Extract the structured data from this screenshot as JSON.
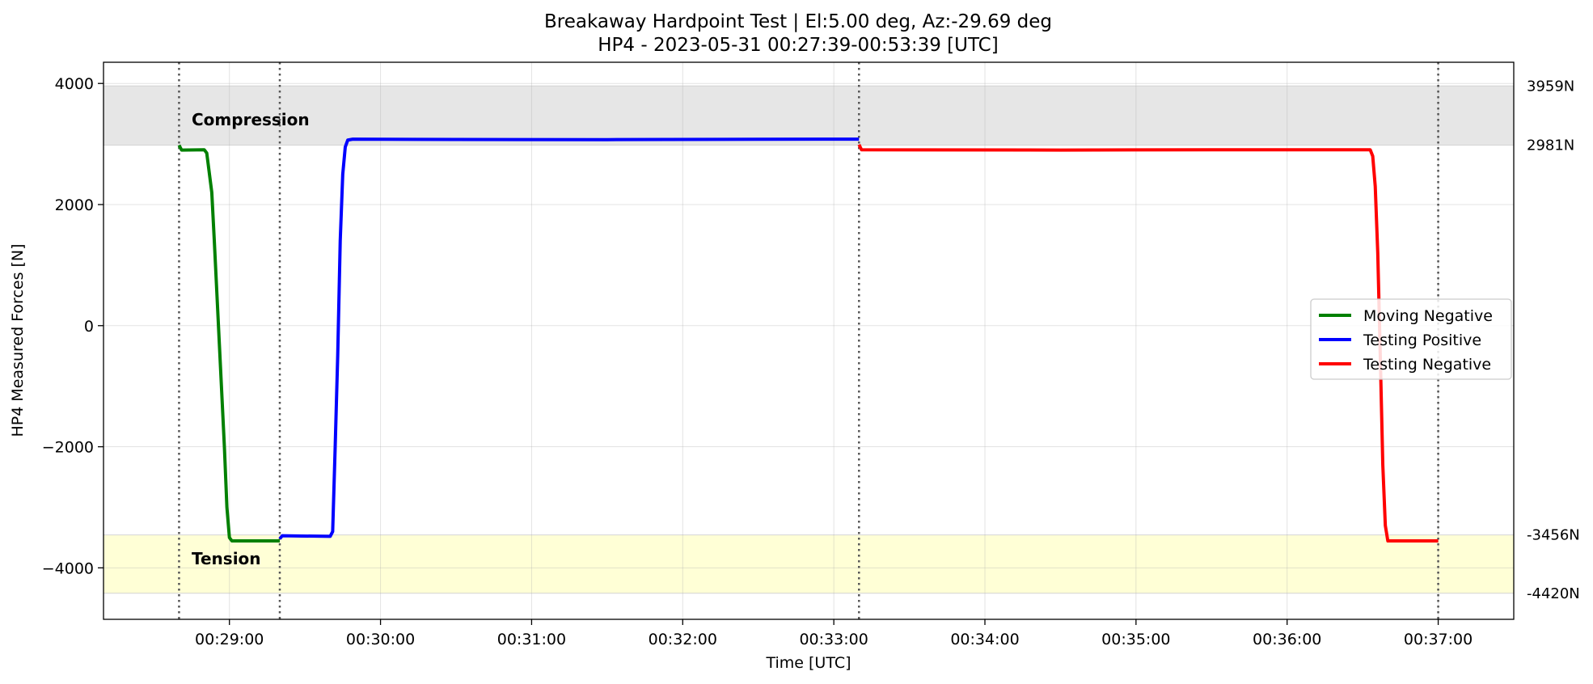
{
  "chart_data": {
    "type": "line",
    "title": "Breakaway Hardpoint Test | El:5.00 deg, Az:-29.69 deg",
    "subtitle": "HP4 - 2023-05-31 00:27:39-00:53:39 [UTC]",
    "xlabel": "Time [UTC]",
    "ylabel": "HP4 Measured Forces [N]",
    "xlim": [
      "00:28:10",
      "00:37:30"
    ],
    "ylim": [
      -4850,
      4350
    ],
    "x_ticks": [
      "00:29:00",
      "00:30:00",
      "00:31:00",
      "00:32:00",
      "00:33:00",
      "00:34:00",
      "00:35:00",
      "00:36:00",
      "00:37:00"
    ],
    "y_ticks": [
      -4000,
      -2000,
      0,
      2000,
      4000
    ],
    "y_tick_labels": [
      "−4000",
      "−2000",
      "0",
      "2000",
      "4000"
    ],
    "grid": true,
    "legend_position": "center-right",
    "bands": [
      {
        "label": "Compression",
        "from": 2981,
        "to": 3959,
        "color": "#e6e6e6"
      },
      {
        "label": "Tension",
        "from": -4420,
        "to": -3456,
        "color": "#ffffd6"
      }
    ],
    "right_labels": [
      {
        "value": 3959,
        "text": "3959N"
      },
      {
        "value": 2981,
        "text": "2981N"
      },
      {
        "value": -3456,
        "text": "-3456N"
      },
      {
        "value": -4420,
        "text": "-4420N"
      }
    ],
    "vlines": [
      "00:28:40",
      "00:29:20",
      "00:33:10",
      "00:37:00"
    ],
    "series": [
      {
        "name": "Moving Negative",
        "color": "#008000",
        "points": [
          [
            "00:28:40",
            2980
          ],
          [
            "00:28:41",
            2900
          ],
          [
            "00:28:50",
            2905
          ],
          [
            "00:28:51",
            2850
          ],
          [
            "00:28:53",
            2200
          ],
          [
            "00:28:54",
            1400
          ],
          [
            "00:28:56",
            -300
          ],
          [
            "00:28:58",
            -2000
          ],
          [
            "00:28:59",
            -3000
          ],
          [
            "00:29:00",
            -3500
          ],
          [
            "00:29:01",
            -3555
          ],
          [
            "00:29:20",
            -3555
          ]
        ]
      },
      {
        "name": "Testing Positive",
        "color": "#0000ff",
        "points": [
          [
            "00:29:20",
            -3520
          ],
          [
            "00:29:21",
            -3470
          ],
          [
            "00:29:40",
            -3480
          ],
          [
            "00:29:41",
            -3400
          ],
          [
            "00:29:42",
            -2000
          ],
          [
            "00:29:43",
            -500
          ],
          [
            "00:29:44",
            1400
          ],
          [
            "00:29:45",
            2500
          ],
          [
            "00:29:46",
            2950
          ],
          [
            "00:29:47",
            3065
          ],
          [
            "00:29:49",
            3080
          ],
          [
            "00:30:30",
            3075
          ],
          [
            "00:31:30",
            3072
          ],
          [
            "00:32:30",
            3078
          ],
          [
            "00:33:10",
            3080
          ]
        ]
      },
      {
        "name": "Testing Negative",
        "color": "#ff0000",
        "points": [
          [
            "00:33:10",
            2990
          ],
          [
            "00:33:11",
            2905
          ],
          [
            "00:34:30",
            2900
          ],
          [
            "00:35:30",
            2905
          ],
          [
            "00:36:33",
            2905
          ],
          [
            "00:36:34",
            2800
          ],
          [
            "00:36:35",
            2300
          ],
          [
            "00:36:36",
            1200
          ],
          [
            "00:36:37",
            -500
          ],
          [
            "00:36:38",
            -2300
          ],
          [
            "00:36:39",
            -3300
          ],
          [
            "00:36:40",
            -3555
          ],
          [
            "00:37:00",
            -3555
          ]
        ]
      }
    ]
  }
}
